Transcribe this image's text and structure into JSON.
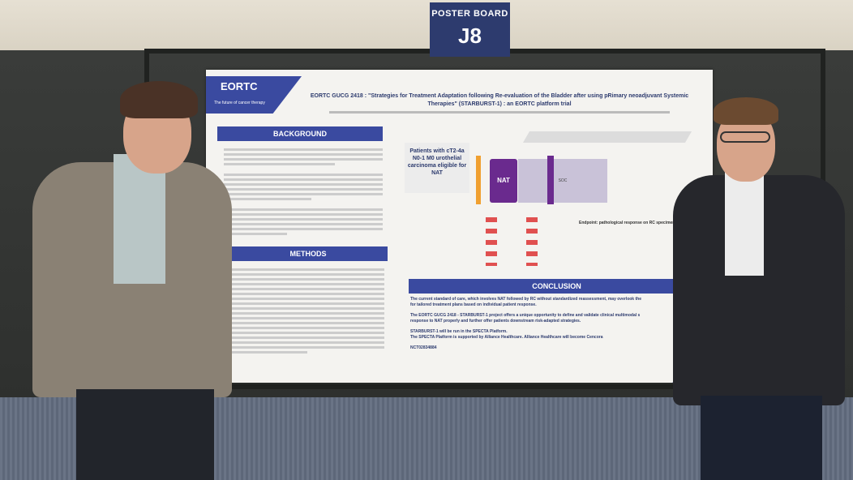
{
  "sign": {
    "title": "POSTER BOARD",
    "code": "J8"
  },
  "poster": {
    "logo": "EORTC",
    "logo_tagline": "The future of cancer therapy",
    "title": "EORTC GUCG 2418 : \"Strategies for Treatment Adaptation following Re-evaluation of the Bladder after using pRimary neoadjuvant Systemic Therapies\" (STARBURST-1) : an EORTC platform trial",
    "sections": {
      "background": "BACKGROUND",
      "methods": "METHODS",
      "conclusion": "CONCLUSION"
    },
    "diagram": {
      "patients": "Patients with cT2-4a N0-1 M0 urothelial carcinoma eligible for NAT",
      "nat": "NAT",
      "soc": "SOC",
      "endpoint": "Endpoint: pathological response on RC specimen"
    },
    "conclusion_lines": [
      "The current standard of care, which involves NAT followed by RC without standardized reassessment, may overlook the",
      "for tailored treatment plans based on individual patient response.",
      "The EORTC GUCG 2418 - STARBURST-1 project offers a unique opportunity to define and validate clinical multimodal s",
      "response to NAT properly and further offer patients downstream risk-adapted strategies.",
      "STARBURST-1 will be run in the SPECTA Platform.",
      "The SPECTA Platform is supported by Alliance Healthcare. Alliance Healthcare will become Cencora",
      "NCT02834884"
    ]
  },
  "colors": {
    "brand": "#3a4aa0",
    "sign": "#2d3b6e",
    "nat": "#6a2a8e"
  }
}
